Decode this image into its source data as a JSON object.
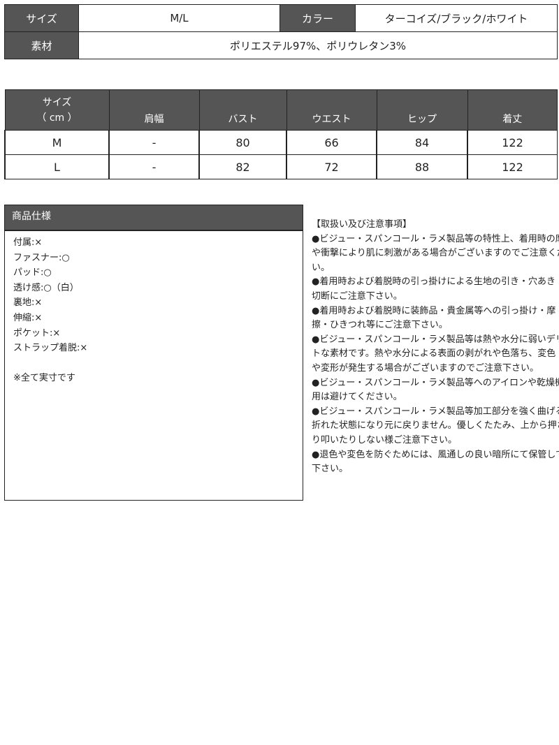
{
  "info_table": {
    "size_label": "サイズ",
    "size_value": "M/L",
    "color_label": "カラー",
    "color_value": "ターコイズ/ブラック/ホワイト",
    "material_label": "素材",
    "material_value": "ポリエステル97%、ポリウレタン3%"
  },
  "size_table": {
    "headers": [
      "サイズ",
      "（ cm ）",
      "肩幅",
      "バスト",
      "ウエスト",
      "ヒップ",
      "着丈"
    ],
    "rows": [
      [
        "M",
        "-",
        "80",
        "66",
        "84",
        "122"
      ],
      [
        "L",
        "-",
        "82",
        "72",
        "88",
        "122"
      ]
    ]
  },
  "spec": {
    "title": "商品仕様",
    "items": [
      "付属:×",
      "ファスナー:○",
      "パッド:○",
      "透け感:○（白）",
      "裏地:×",
      "伸縮:×",
      "ポケット:×",
      "ストラップ着脱:×",
      "",
      "※全て実寸です"
    ]
  },
  "notes": {
    "lines": [
      "【取扱い及び注意事項】",
      "●ビジュー・スパンコール・ラメ製品等の特性上、着用時の摩擦",
      "や衝撃により肌に刺激がある場合がございますのでご注意くださ",
      "い。",
      "●着用時および着脱時の引っ掛けによる生地の引き・穴あき・",
      "切断にご注意下さい。",
      "●着用時および着脱時に装飾品・貴金属等への引っ掛け・摩",
      "擦・ひきつれ等にご注意下さい。",
      "●ビジュー・スパンコール・ラメ製品等は熱や水分に弱いデリケー",
      "トな素材です。熱や水分による表面の剥がれや色落ち、変色",
      "や変形が発生する場合がございますのでご注意下さい。",
      "●ビジュー・スパンコール・ラメ製品等へのアイロンや乾燥機の使",
      "用は避けてください。",
      "●ビジュー・スパンコール・ラメ製品等加工部分を強く曲げると",
      "折れた状態になり元に戻りません。優しくたたみ、上から押さえた",
      "り叩いたりしない様ご注意下さい。",
      "●退色や変色を防ぐためには、風通しの良い暗所にて保管して",
      "下さい。"
    ]
  }
}
